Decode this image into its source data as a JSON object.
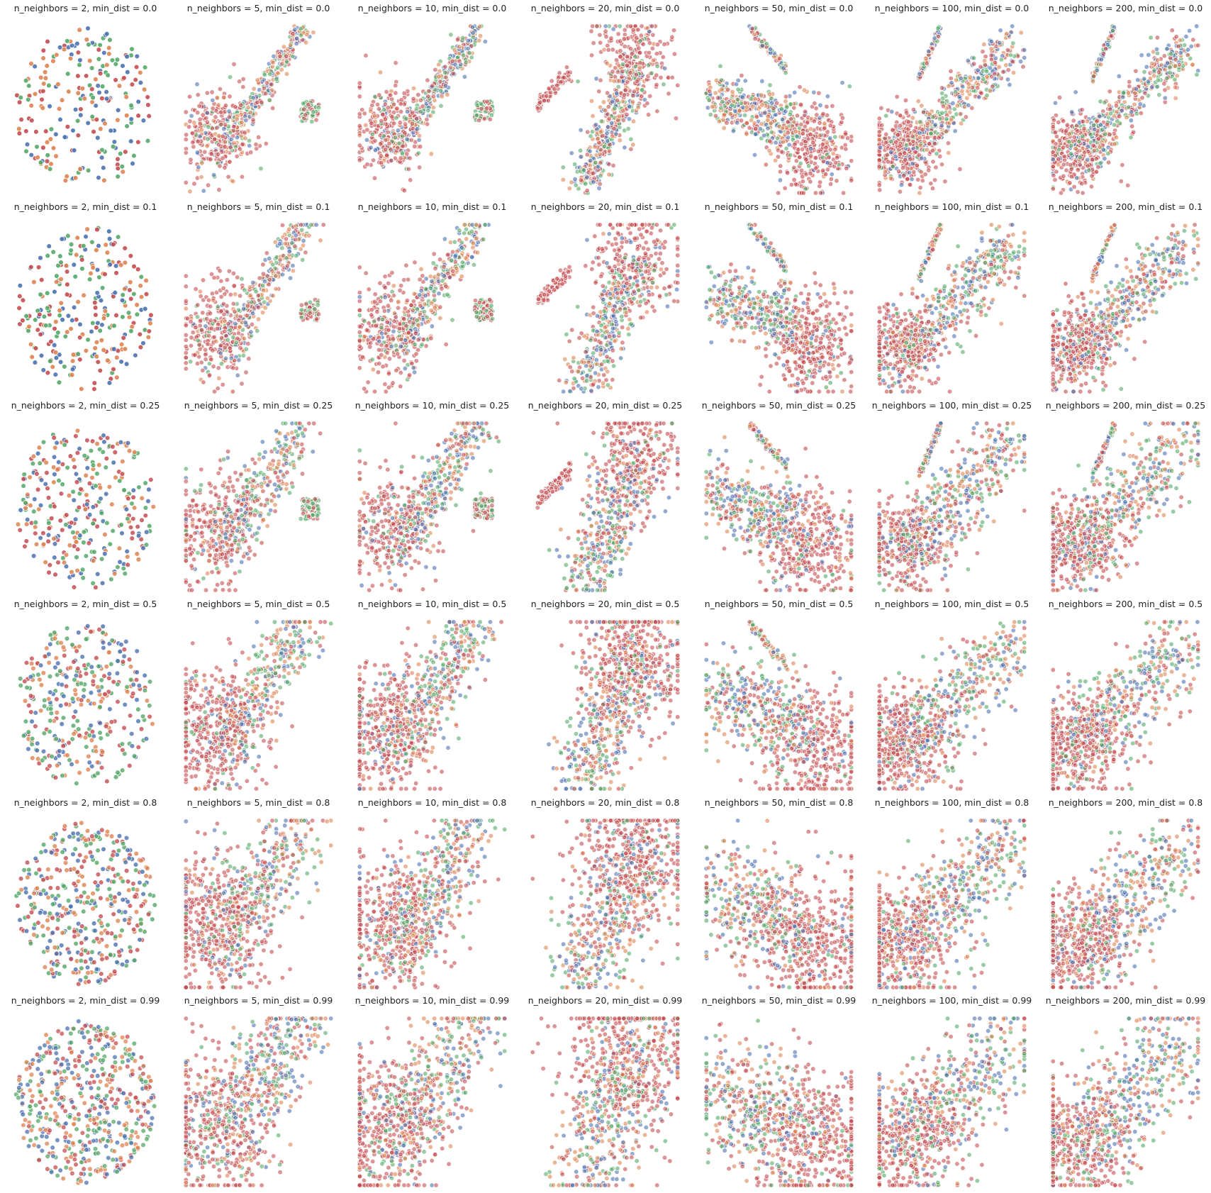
{
  "figure": {
    "n_neighbors_values": [
      2,
      5,
      10,
      20,
      50,
      100,
      200
    ],
    "min_dist_values": [
      0.0,
      0.1,
      0.25,
      0.5,
      0.8,
      0.99
    ],
    "palette": [
      "#4c72b0",
      "#dd8452",
      "#55a868",
      "#c44e52"
    ]
  },
  "chart_data": {
    "type": "scatter",
    "layout": "grid 6 rows (min_dist) x 7 columns (n_neighbors)",
    "axes_visible": false,
    "grid": false,
    "series_colors": [
      "#4c72b0",
      "#dd8452",
      "#55a868",
      "#c44e52"
    ],
    "panels": [
      {
        "n_neighbors": 2,
        "min_dist": 0.0,
        "title": "n_neighbors = 2, min_dist = 0.0",
        "n_points": 220,
        "alpha": 0.9
      },
      {
        "n_neighbors": 5,
        "min_dist": 0.0,
        "title": "n_neighbors = 5, min_dist = 0.0",
        "n_points": 600,
        "alpha": 0.6
      },
      {
        "n_neighbors": 10,
        "min_dist": 0.0,
        "title": "n_neighbors = 10, min_dist = 0.0",
        "n_points": 650,
        "alpha": 0.6
      },
      {
        "n_neighbors": 20,
        "min_dist": 0.0,
        "title": "n_neighbors = 20, min_dist = 0.0",
        "n_points": 700,
        "alpha": 0.6
      },
      {
        "n_neighbors": 50,
        "min_dist": 0.0,
        "title": "n_neighbors = 50, min_dist = 0.0",
        "n_points": 750,
        "alpha": 0.6
      },
      {
        "n_neighbors": 100,
        "min_dist": 0.0,
        "title": "n_neighbors = 100, min_dist = 0.0",
        "n_points": 800,
        "alpha": 0.6
      },
      {
        "n_neighbors": 200,
        "min_dist": 0.0,
        "title": "n_neighbors = 200, min_dist = 0.0",
        "n_points": 800,
        "alpha": 0.6
      },
      {
        "n_neighbors": 2,
        "min_dist": 0.1,
        "title": "n_neighbors = 2, min_dist = 0.1",
        "n_points": 260,
        "alpha": 0.9
      },
      {
        "n_neighbors": 5,
        "min_dist": 0.1,
        "title": "n_neighbors = 5, min_dist = 0.1",
        "n_points": 600,
        "alpha": 0.6
      },
      {
        "n_neighbors": 10,
        "min_dist": 0.1,
        "title": "n_neighbors = 10, min_dist = 0.1",
        "n_points": 650,
        "alpha": 0.6
      },
      {
        "n_neighbors": 20,
        "min_dist": 0.1,
        "title": "n_neighbors = 20, min_dist = 0.1",
        "n_points": 700,
        "alpha": 0.6
      },
      {
        "n_neighbors": 50,
        "min_dist": 0.1,
        "title": "n_neighbors = 50, min_dist = 0.1",
        "n_points": 750,
        "alpha": 0.6
      },
      {
        "n_neighbors": 100,
        "min_dist": 0.1,
        "title": "n_neighbors = 100, min_dist = 0.1",
        "n_points": 800,
        "alpha": 0.6
      },
      {
        "n_neighbors": 200,
        "min_dist": 0.1,
        "title": "n_neighbors = 200, min_dist = 0.1",
        "n_points": 800,
        "alpha": 0.6
      },
      {
        "n_neighbors": 2,
        "min_dist": 0.25,
        "title": "n_neighbors = 2, min_dist = 0.25",
        "n_points": 300,
        "alpha": 0.85
      },
      {
        "n_neighbors": 5,
        "min_dist": 0.25,
        "title": "n_neighbors = 5, min_dist = 0.25",
        "n_points": 650,
        "alpha": 0.6
      },
      {
        "n_neighbors": 10,
        "min_dist": 0.25,
        "title": "n_neighbors = 10, min_dist = 0.25",
        "n_points": 700,
        "alpha": 0.6
      },
      {
        "n_neighbors": 20,
        "min_dist": 0.25,
        "title": "n_neighbors = 20, min_dist = 0.25",
        "n_points": 750,
        "alpha": 0.6
      },
      {
        "n_neighbors": 50,
        "min_dist": 0.25,
        "title": "n_neighbors = 50, min_dist = 0.25",
        "n_points": 800,
        "alpha": 0.6
      },
      {
        "n_neighbors": 100,
        "min_dist": 0.25,
        "title": "n_neighbors = 100, min_dist = 0.25",
        "n_points": 800,
        "alpha": 0.6
      },
      {
        "n_neighbors": 200,
        "min_dist": 0.25,
        "title": "n_neighbors = 200, min_dist = 0.25",
        "n_points": 800,
        "alpha": 0.6
      },
      {
        "n_neighbors": 2,
        "min_dist": 0.5,
        "title": "n_neighbors = 2, min_dist = 0.5",
        "n_points": 340,
        "alpha": 0.8
      },
      {
        "n_neighbors": 5,
        "min_dist": 0.5,
        "title": "n_neighbors = 5, min_dist = 0.5",
        "n_points": 750,
        "alpha": 0.6
      },
      {
        "n_neighbors": 10,
        "min_dist": 0.5,
        "title": "n_neighbors = 10, min_dist = 0.5",
        "n_points": 750,
        "alpha": 0.6
      },
      {
        "n_neighbors": 20,
        "min_dist": 0.5,
        "title": "n_neighbors = 20, min_dist = 0.5",
        "n_points": 800,
        "alpha": 0.6
      },
      {
        "n_neighbors": 50,
        "min_dist": 0.5,
        "title": "n_neighbors = 50, min_dist = 0.5",
        "n_points": 800,
        "alpha": 0.6
      },
      {
        "n_neighbors": 100,
        "min_dist": 0.5,
        "title": "n_neighbors = 100, min_dist = 0.5",
        "n_points": 800,
        "alpha": 0.6
      },
      {
        "n_neighbors": 200,
        "min_dist": 0.5,
        "title": "n_neighbors = 200, min_dist = 0.5",
        "n_points": 800,
        "alpha": 0.6
      },
      {
        "n_neighbors": 2,
        "min_dist": 0.8,
        "title": "n_neighbors = 2, min_dist = 0.8",
        "n_points": 420,
        "alpha": 0.8
      },
      {
        "n_neighbors": 5,
        "min_dist": 0.8,
        "title": "n_neighbors = 5, min_dist = 0.8",
        "n_points": 800,
        "alpha": 0.6
      },
      {
        "n_neighbors": 10,
        "min_dist": 0.8,
        "title": "n_neighbors = 10, min_dist = 0.8",
        "n_points": 800,
        "alpha": 0.6
      },
      {
        "n_neighbors": 20,
        "min_dist": 0.8,
        "title": "n_neighbors = 20, min_dist = 0.8",
        "n_points": 800,
        "alpha": 0.6
      },
      {
        "n_neighbors": 50,
        "min_dist": 0.8,
        "title": "n_neighbors = 50, min_dist = 0.8",
        "n_points": 800,
        "alpha": 0.6
      },
      {
        "n_neighbors": 100,
        "min_dist": 0.8,
        "title": "n_neighbors = 100, min_dist = 0.8",
        "n_points": 800,
        "alpha": 0.6
      },
      {
        "n_neighbors": 200,
        "min_dist": 0.8,
        "title": "n_neighbors = 200, min_dist = 0.8",
        "n_points": 800,
        "alpha": 0.6
      },
      {
        "n_neighbors": 2,
        "min_dist": 0.99,
        "title": "n_neighbors = 2, min_dist = 0.99",
        "n_points": 520,
        "alpha": 0.75
      },
      {
        "n_neighbors": 5,
        "min_dist": 0.99,
        "title": "n_neighbors = 5, min_dist = 0.99",
        "n_points": 800,
        "alpha": 0.6
      },
      {
        "n_neighbors": 10,
        "min_dist": 0.99,
        "title": "n_neighbors = 10, min_dist = 0.99",
        "n_points": 800,
        "alpha": 0.6
      },
      {
        "n_neighbors": 20,
        "min_dist": 0.99,
        "title": "n_neighbors = 20, min_dist = 0.99",
        "n_points": 800,
        "alpha": 0.6
      },
      {
        "n_neighbors": 50,
        "min_dist": 0.99,
        "title": "n_neighbors = 50, min_dist = 0.99",
        "n_points": 800,
        "alpha": 0.6
      },
      {
        "n_neighbors": 100,
        "min_dist": 0.99,
        "title": "n_neighbors = 100, min_dist = 0.99",
        "n_points": 800,
        "alpha": 0.6
      },
      {
        "n_neighbors": 200,
        "min_dist": 0.99,
        "title": "n_neighbors = 200, min_dist = 0.99",
        "n_points": 800,
        "alpha": 0.6
      }
    ]
  }
}
